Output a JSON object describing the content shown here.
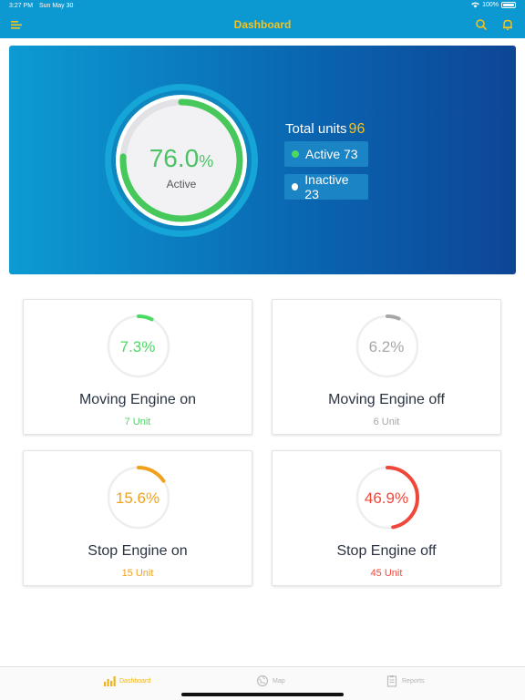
{
  "status_bar": {
    "time": "3:27 PM",
    "date": "Sun May 30",
    "battery": "100%"
  },
  "header": {
    "title": "Dashboard",
    "menu_icon": "menu-icon",
    "search_icon": "search-icon",
    "bell_icon": "bell-icon"
  },
  "summary": {
    "percent_value": "76.0",
    "percent_sign": "%",
    "label": "Active",
    "progress": 0.76,
    "total_label": "Total units",
    "total_value": "96",
    "active_label": "Active 73",
    "inactive_label": "Inactive 23"
  },
  "cards": [
    {
      "percent": "7.3%",
      "progress": 0.073,
      "title": "Moving Engine on",
      "units": "7 Unit",
      "color": "#4cd964"
    },
    {
      "percent": "6.2%",
      "progress": 0.062,
      "title": "Moving Engine off",
      "units": "6 Unit",
      "color": "#a7a7a7"
    },
    {
      "percent": "15.6%",
      "progress": 0.156,
      "title": "Stop Engine on",
      "units": "15 Unit",
      "color": "#f0a21f"
    },
    {
      "percent": "46.9%",
      "progress": 0.469,
      "title": "Stop Engine off",
      "units": "45 Unit",
      "color": "#f0473a"
    }
  ],
  "tabs": [
    {
      "label": "Dashboard",
      "icon": "bar-chart-icon",
      "active": true
    },
    {
      "label": "Map",
      "icon": "globe-icon",
      "active": false
    },
    {
      "label": "Reports",
      "icon": "clipboard-icon",
      "active": false
    }
  ],
  "colors": {
    "header_bg": "#0c98d0",
    "accent": "#f6c21c",
    "active_green": "#4cc265"
  }
}
